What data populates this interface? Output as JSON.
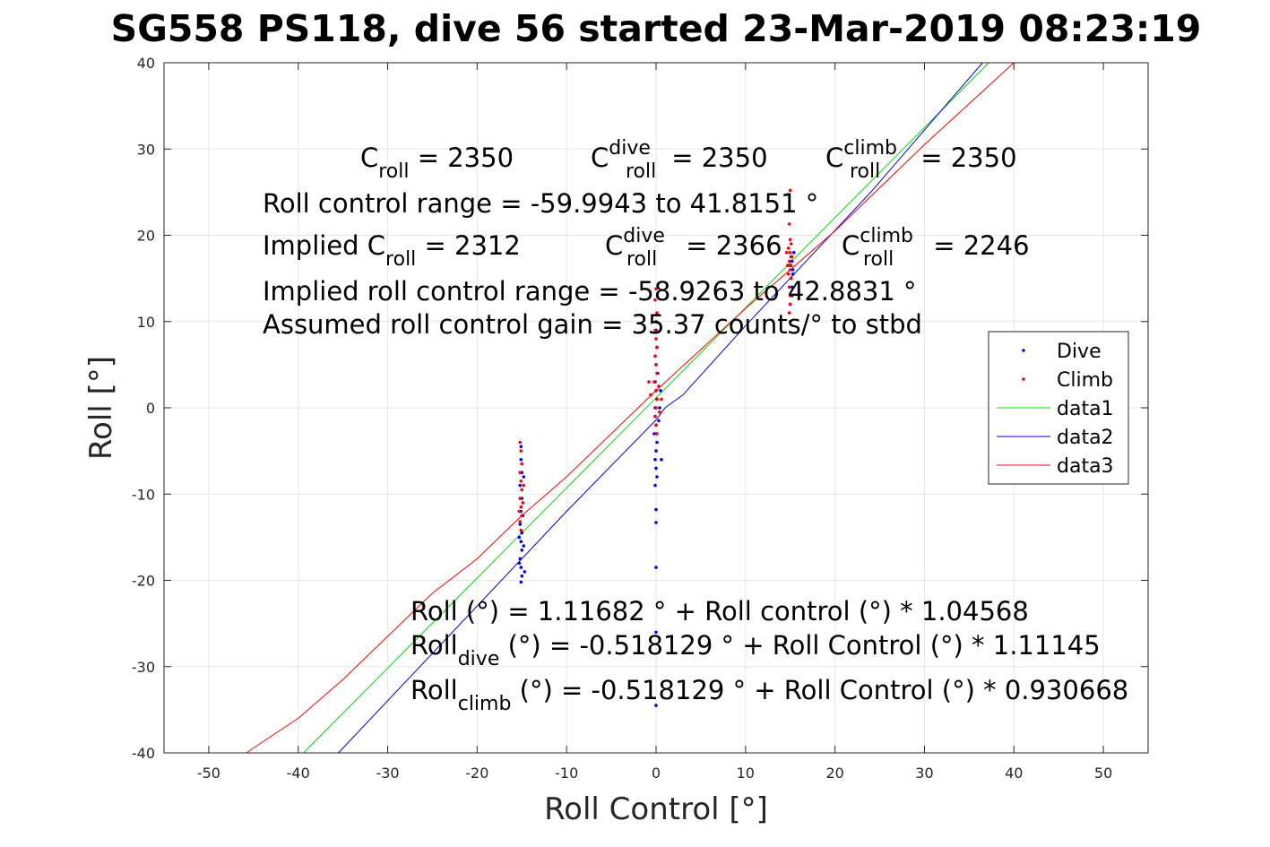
{
  "chart_data": {
    "type": "scatter",
    "title": "SG558 PS118, dive 56 started 23-Mar-2019 08:23:19",
    "xlabel": "Roll Control [°]",
    "ylabel": "Roll [°]",
    "xlim": [
      -55,
      55
    ],
    "ylim": [
      -40,
      40
    ],
    "xticks": [
      "-50",
      "-40",
      "-30",
      "-20",
      "-10",
      "0",
      "10",
      "20",
      "30",
      "40",
      "50"
    ],
    "yticks": [
      "-40",
      "-30",
      "-20",
      "-10",
      "0",
      "10",
      "20",
      "30",
      "40"
    ],
    "grid": true,
    "legend_position": "east",
    "colors": {
      "dive": "#0000ff",
      "climb": "#ff0000",
      "data1": "#00dd00",
      "data2": "#0000ee",
      "data3": "#ff0000"
    },
    "legend": [
      "Dive",
      "Climb",
      "data1",
      "data2",
      "data3"
    ],
    "series": [
      {
        "name": "Dive",
        "kind": "points",
        "points": [
          [
            -15.1,
            -4.5
          ],
          [
            -15.1,
            -6
          ],
          [
            -15.0,
            -7.5
          ],
          [
            -15.2,
            -9
          ],
          [
            -15.0,
            -10.5
          ],
          [
            -15.1,
            -12
          ],
          [
            -15.2,
            -13.5
          ],
          [
            -15.0,
            -14.5
          ],
          [
            -15.1,
            -15.5
          ],
          [
            -15.0,
            -16.5
          ],
          [
            -15.2,
            -17.5
          ],
          [
            -15.1,
            -18.5
          ],
          [
            -15.0,
            -19.5
          ],
          [
            -15.1,
            -20.2
          ],
          [
            -14.8,
            -8
          ],
          [
            -14.8,
            -16
          ],
          [
            -14.7,
            -19
          ],
          [
            -15.3,
            -18
          ],
          [
            -15.3,
            -15
          ],
          [
            -14.9,
            -12.5
          ],
          [
            -0.1,
            -1
          ],
          [
            0.0,
            -2
          ],
          [
            -0.2,
            -3
          ],
          [
            0.1,
            -4
          ],
          [
            0.0,
            -5
          ],
          [
            -0.1,
            -6
          ],
          [
            0.0,
            -7
          ],
          [
            0.1,
            -8
          ],
          [
            -0.1,
            -9
          ],
          [
            0.0,
            -11.8
          ],
          [
            0.0,
            -13.3
          ],
          [
            0.0,
            -18.5
          ],
          [
            0.0,
            -26
          ],
          [
            0.0,
            -34.5
          ],
          [
            -0.1,
            0
          ],
          [
            0.1,
            1
          ],
          [
            0.0,
            2
          ],
          [
            -0.1,
            3
          ],
          [
            0.2,
            4
          ],
          [
            0.0,
            5
          ],
          [
            -0.1,
            6
          ],
          [
            0.1,
            7
          ],
          [
            0.0,
            9
          ],
          [
            0.3,
            -1.5
          ],
          [
            0.4,
            0
          ],
          [
            0.5,
            2
          ],
          [
            0.6,
            -6
          ],
          [
            15.0,
            12
          ],
          [
            15.2,
            14
          ],
          [
            15.1,
            15
          ],
          [
            15.3,
            16
          ],
          [
            15.0,
            16.5
          ],
          [
            15.2,
            17
          ],
          [
            15.4,
            18
          ],
          [
            15.1,
            17.5
          ],
          [
            15.3,
            15.5
          ],
          [
            15.2,
            13
          ]
        ]
      },
      {
        "name": "Climb",
        "kind": "points",
        "points": [
          [
            -15.2,
            -4
          ],
          [
            -15.1,
            -5
          ],
          [
            -15.0,
            -6.5
          ],
          [
            -15.2,
            -7.5
          ],
          [
            -15.1,
            -8.5
          ],
          [
            -15.0,
            -9.5
          ],
          [
            -15.2,
            -10.5
          ],
          [
            -15.1,
            -11.5
          ],
          [
            -15.0,
            -12.5
          ],
          [
            -15.2,
            -13.2
          ],
          [
            -15.1,
            -14.2
          ],
          [
            -14.9,
            -11
          ],
          [
            -14.8,
            -9
          ],
          [
            -15.3,
            -12
          ],
          [
            0.0,
            13.8
          ],
          [
            -0.1,
            12.5
          ],
          [
            0.1,
            11
          ],
          [
            0.0,
            10
          ],
          [
            -0.1,
            9
          ],
          [
            0.0,
            8
          ],
          [
            0.1,
            7
          ],
          [
            -0.1,
            6
          ],
          [
            0.0,
            5
          ],
          [
            0.1,
            4
          ],
          [
            -0.2,
            3
          ],
          [
            0.0,
            2
          ],
          [
            0.1,
            1
          ],
          [
            0.0,
            0
          ],
          [
            -0.1,
            -1
          ],
          [
            0.0,
            -2
          ],
          [
            0.1,
            -3
          ],
          [
            -0.8,
            3
          ],
          [
            -0.6,
            1.5
          ],
          [
            0.4,
            -0.5
          ],
          [
            0.3,
            2.5
          ],
          [
            0.6,
            1
          ],
          [
            15.0,
            25.2
          ],
          [
            14.9,
            21.3
          ],
          [
            15.0,
            19.5
          ],
          [
            15.1,
            19
          ],
          [
            14.8,
            18.5
          ],
          [
            15.0,
            18
          ],
          [
            15.2,
            17.5
          ],
          [
            14.9,
            17
          ],
          [
            15.1,
            16.5
          ],
          [
            15.0,
            16
          ],
          [
            14.8,
            15.5
          ],
          [
            15.1,
            15
          ],
          [
            14.9,
            14
          ],
          [
            15.0,
            13
          ],
          [
            15.0,
            12
          ],
          [
            14.9,
            11
          ],
          [
            15.0,
            10
          ],
          [
            14.7,
            16.5
          ],
          [
            14.6,
            18
          ]
        ]
      },
      {
        "name": "data1",
        "kind": "line",
        "points": [
          [
            -39.4,
            -40
          ],
          [
            37.2,
            40
          ]
        ]
      },
      {
        "name": "data2",
        "kind": "line",
        "points": [
          [
            -35.5,
            -40
          ],
          [
            -10,
            -12
          ],
          [
            0,
            -1.4
          ],
          [
            1,
            0
          ],
          [
            3,
            1.5
          ],
          [
            10,
            9.5
          ],
          [
            24,
            25
          ],
          [
            36.5,
            40
          ]
        ]
      },
      {
        "name": "data3",
        "kind": "line",
        "points": [
          [
            -45.8,
            -40
          ],
          [
            -40,
            -36
          ],
          [
            -35,
            -31.5
          ],
          [
            -30,
            -26.5
          ],
          [
            -25,
            -21.5
          ],
          [
            -20,
            -17.5
          ],
          [
            -15,
            -12.5
          ],
          [
            -10,
            -8
          ],
          [
            0,
            2
          ],
          [
            10,
            11.5
          ],
          [
            20,
            20.5
          ],
          [
            30,
            30.5
          ],
          [
            40,
            40
          ]
        ]
      }
    ],
    "annotations": {
      "row1": [
        {
          "base": "C",
          "sub": "roll",
          "sup": "",
          "rest": " = 2350"
        },
        {
          "base": "C",
          "sub": "roll",
          "sup": "dive",
          "rest": " = 2350"
        },
        {
          "base": "C",
          "sub": "roll",
          "sup": "climb",
          "rest": " = 2350"
        }
      ],
      "range": "Roll control range = -59.9943 to 41.8151 °",
      "row2": [
        {
          "base": "Implied C",
          "sub": "roll",
          "sup": "",
          "rest": " = 2312"
        },
        {
          "base": "C",
          "sub": "roll",
          "sup": "dive",
          "rest": " = 2366"
        },
        {
          "base": "C",
          "sub": "roll",
          "sup": "climb",
          "rest": " = 2246"
        }
      ],
      "implied_range": "Implied roll control range = -58.9263 to 42.8831 °",
      "gain": "Assumed roll control gain = 35.37 counts/° to stbd",
      "fit1": "Roll (°) = 1.11682 ° + Roll control (°) * 1.04568",
      "fit2": {
        "base": "Roll",
        "sub": "dive",
        "rest": " (°) = -0.518129 ° + Roll Control (°) * 1.11145"
      },
      "fit3": {
        "base": "Roll",
        "sub": "climb",
        "rest": " (°) = -0.518129 ° + Roll Control (°) * 0.930668"
      }
    }
  }
}
